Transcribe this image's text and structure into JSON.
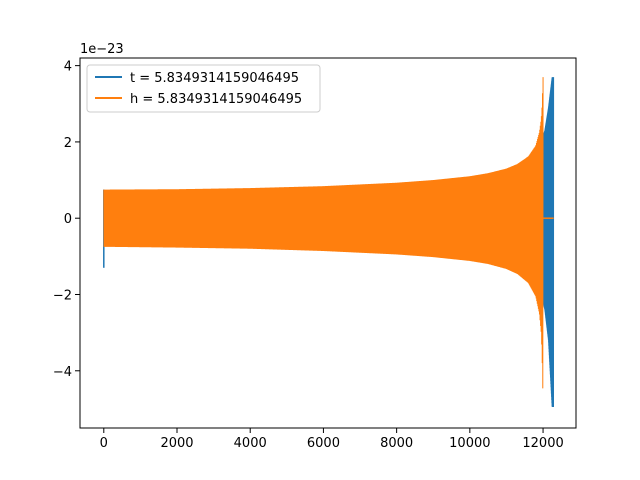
{
  "chart_data": {
    "type": "line",
    "title": "",
    "xlabel": "",
    "ylabel": "",
    "y_offset_label": "1e−23",
    "xlim": [
      -650,
      12900
    ],
    "ylim": [
      -5.5,
      4.2
    ],
    "x_ticks": [
      0,
      2000,
      4000,
      6000,
      8000,
      10000,
      12000
    ],
    "x_tick_labels": [
      "0",
      "2000",
      "4000",
      "6000",
      "8000",
      "10000",
      "12000"
    ],
    "y_ticks": [
      -4,
      -2,
      0,
      2,
      4
    ],
    "y_tick_labels": [
      "−4",
      "−2",
      "0",
      "2",
      "4"
    ],
    "grid": false,
    "legend_position": "upper-left",
    "series": [
      {
        "name": "t = 5.8349314159046495",
        "color": "#1f77b4",
        "segments": [
          {
            "x": [
              0,
              8
            ],
            "y": [
              -1.3,
              0.75
            ],
            "style": "spike"
          },
          {
            "x": [
              11950,
              12050,
              12150,
              12250,
              12285
            ],
            "y": [
              2.0,
              2.3,
              2.9,
              3.7,
              3.7
            ],
            "style": "envelope"
          },
          {
            "x": [
              11950,
              12050,
              12150,
              12250,
              12285
            ],
            "y": [
              -2.0,
              -2.4,
              -3.2,
              -4.95,
              -4.95
            ],
            "style": "envelope"
          }
        ]
      },
      {
        "name": "h = 5.8349314159046495",
        "color": "#ff7f0e",
        "envelope": {
          "x": [
            0,
            2000,
            4000,
            6000,
            8000,
            9000,
            10000,
            10500,
            11000,
            11300,
            11600,
            11800,
            11900,
            11950,
            11970,
            11990,
            12000
          ],
          "upper": [
            0.75,
            0.76,
            0.79,
            0.84,
            0.93,
            1.0,
            1.1,
            1.18,
            1.3,
            1.42,
            1.62,
            1.9,
            2.25,
            2.6,
            2.9,
            3.4,
            3.7
          ],
          "lower": [
            -0.75,
            -0.77,
            -0.8,
            -0.86,
            -0.95,
            -1.02,
            -1.12,
            -1.2,
            -1.33,
            -1.46,
            -1.7,
            -2.05,
            -2.5,
            -3.0,
            -3.5,
            -4.3,
            -4.95
          ]
        },
        "tail": {
          "x": [
            12000,
            12290
          ],
          "y": [
            0,
            0
          ]
        }
      }
    ]
  }
}
